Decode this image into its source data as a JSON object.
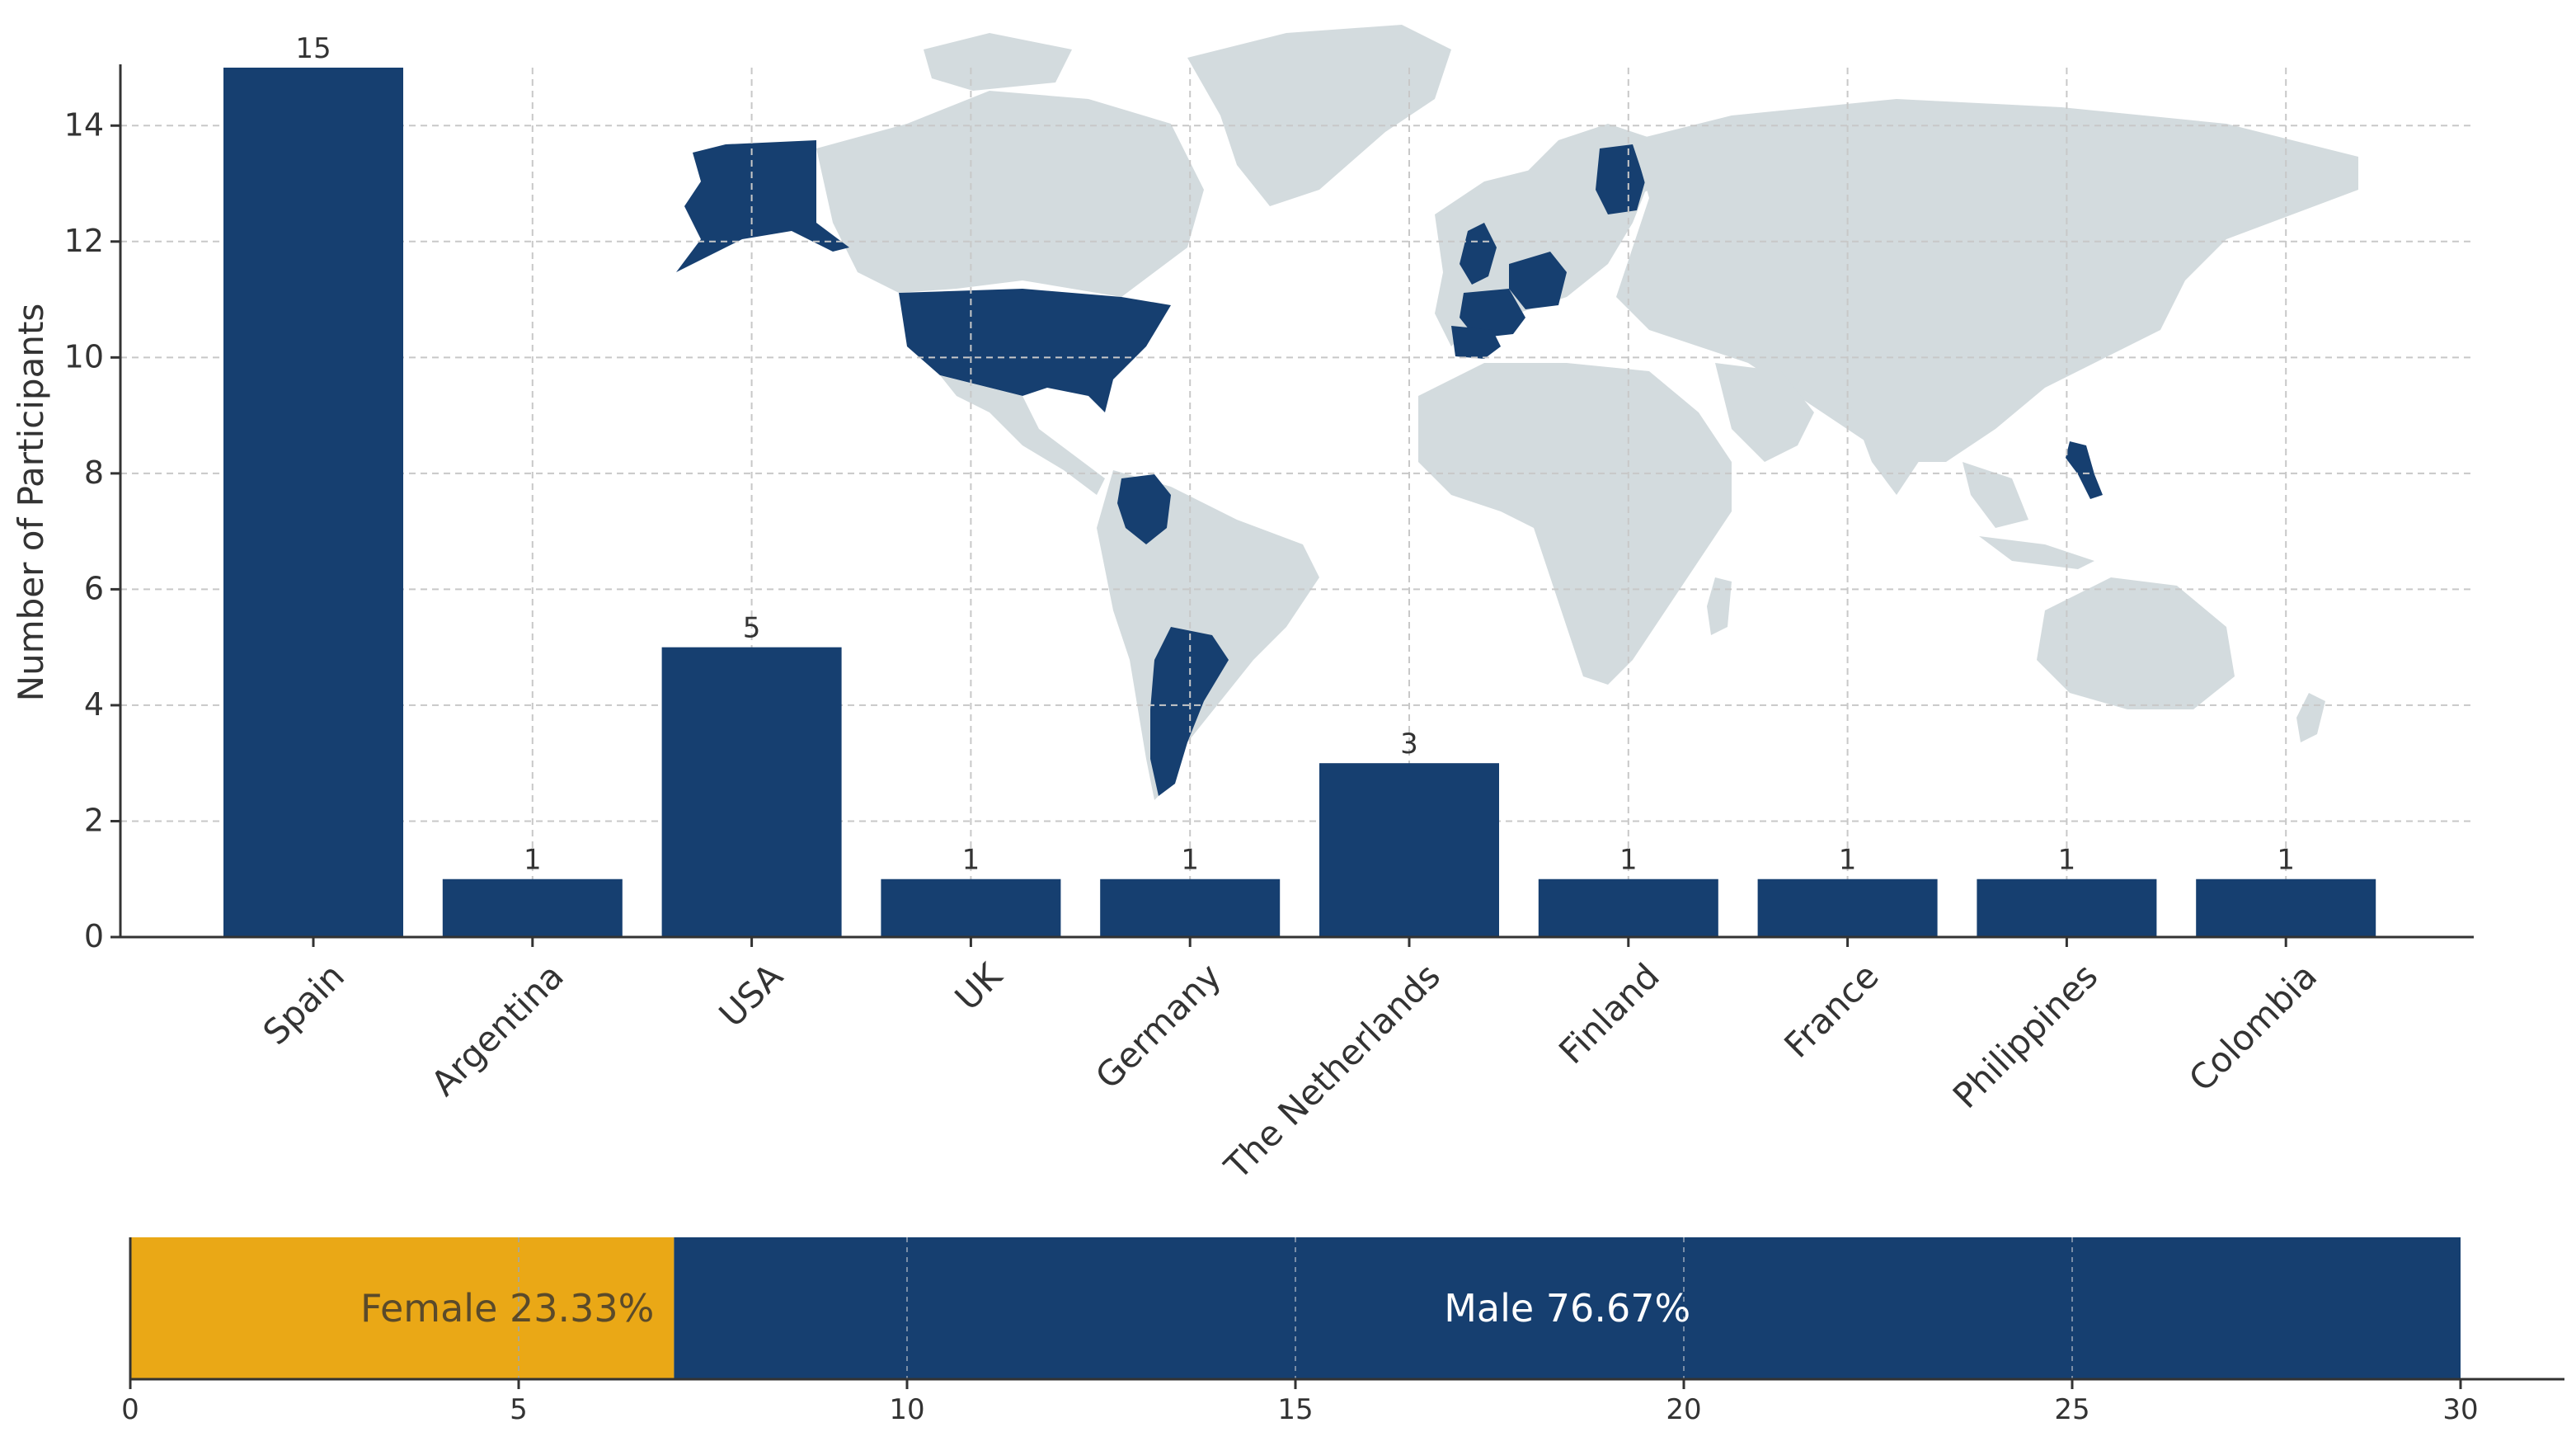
{
  "chart_data": [
    {
      "type": "bar",
      "ylabel": "Number of Participants",
      "xlabel": "",
      "categories": [
        "Spain",
        "Argentina",
        "USA",
        "UK",
        "Germany",
        "The Netherlands",
        "Finland",
        "France",
        "Philippines",
        "Colombia"
      ],
      "values": [
        15,
        1,
        5,
        1,
        1,
        3,
        1,
        1,
        1,
        1
      ],
      "data_labels": [
        "15",
        "1",
        "5",
        "1",
        "1",
        "3",
        "1",
        "1",
        "1",
        "1"
      ],
      "ylim": [
        0,
        15
      ],
      "yticks": [
        0,
        2,
        4,
        6,
        8,
        10,
        12,
        14
      ],
      "ytick_labels": [
        "0",
        "2",
        "4",
        "6",
        "8",
        "10",
        "12",
        "14"
      ],
      "grid": true,
      "background": "world map with participant countries highlighted",
      "colors": {
        "bar": "#163f70",
        "map_land": "#d3dbde",
        "map_highlight": "#163f70"
      }
    },
    {
      "type": "bar",
      "orientation": "horizontal-stacked",
      "series": [
        {
          "name": "Female",
          "value": 7,
          "label": "Female 23.33%",
          "color": "#eaa816"
        },
        {
          "name": "Male",
          "value": 23,
          "label": "Male 76.67%",
          "color": "#163f70"
        }
      ],
      "xlim": [
        0,
        30
      ],
      "xticks": [
        0,
        5,
        10,
        15,
        20,
        25,
        30
      ],
      "xtick_labels": [
        "0",
        "5",
        "10",
        "15",
        "20",
        "25",
        "30"
      ],
      "grid": true
    }
  ]
}
